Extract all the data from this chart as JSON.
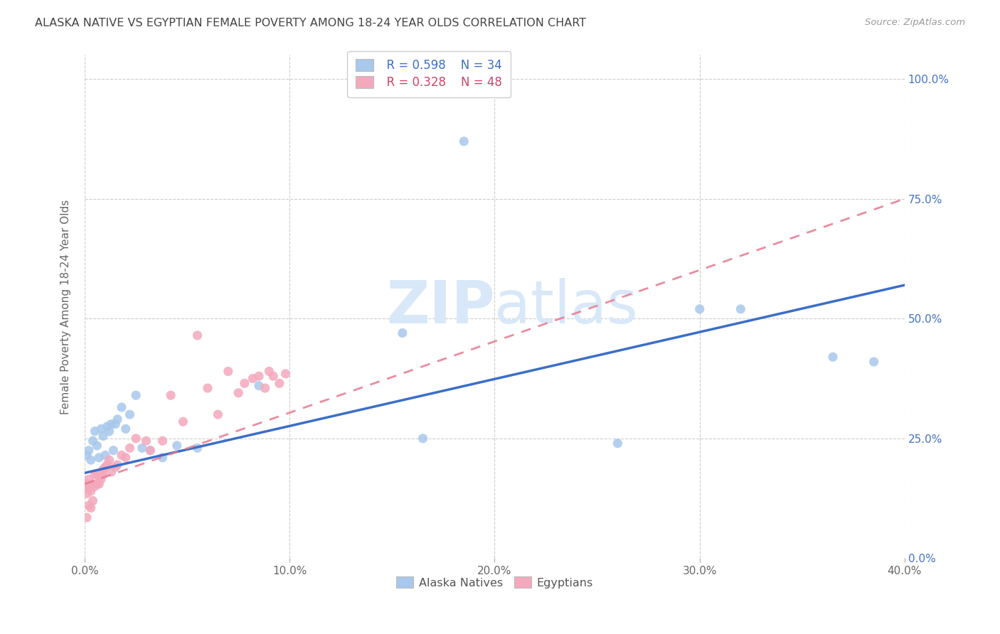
{
  "title": "ALASKA NATIVE VS EGYPTIAN FEMALE POVERTY AMONG 18-24 YEAR OLDS CORRELATION CHART",
  "source": "Source: ZipAtlas.com",
  "xlabel_ticks": [
    "0.0%",
    "10.0%",
    "20.0%",
    "30.0%",
    "40.0%"
  ],
  "xlabel_tick_vals": [
    0.0,
    0.1,
    0.2,
    0.3,
    0.4
  ],
  "ylabel": "Female Poverty Among 18-24 Year Olds",
  "right_ytick_vals": [
    0.0,
    0.25,
    0.5,
    0.75,
    1.0
  ],
  "right_ytick_labels": [
    "0.0%",
    "25.0%",
    "50.0%",
    "75.0%",
    "100.0%"
  ],
  "xlim": [
    0.0,
    0.4
  ],
  "ylim": [
    0.0,
    1.05
  ],
  "legend_r_alaska": "R = 0.598",
  "legend_n_alaska": "N = 34",
  "legend_r_egypt": "R = 0.328",
  "legend_n_egypt": "N = 48",
  "alaska_color": "#A8C8EC",
  "egypt_color": "#F4A8BC",
  "alaska_line_color": "#3B6EC8",
  "egypt_line_color": "#E87890",
  "alaska_x": [
    0.001,
    0.002,
    0.003,
    0.004,
    0.005,
    0.006,
    0.007,
    0.008,
    0.009,
    0.01,
    0.011,
    0.012,
    0.013,
    0.014,
    0.015,
    0.016,
    0.018,
    0.02,
    0.022,
    0.025,
    0.028,
    0.032,
    0.038,
    0.045,
    0.055,
    0.085,
    0.155,
    0.165,
    0.185,
    0.26,
    0.3,
    0.32,
    0.365,
    0.385
  ],
  "alaska_y": [
    0.215,
    0.225,
    0.205,
    0.245,
    0.265,
    0.235,
    0.21,
    0.27,
    0.255,
    0.215,
    0.275,
    0.265,
    0.28,
    0.225,
    0.28,
    0.29,
    0.315,
    0.27,
    0.3,
    0.34,
    0.23,
    0.225,
    0.21,
    0.235,
    0.23,
    0.36,
    0.47,
    0.25,
    0.87,
    0.24,
    0.52,
    0.52,
    0.42,
    0.41
  ],
  "egypt_x": [
    0.001,
    0.001,
    0.001,
    0.002,
    0.002,
    0.002,
    0.003,
    0.003,
    0.004,
    0.004,
    0.005,
    0.005,
    0.006,
    0.006,
    0.007,
    0.007,
    0.008,
    0.008,
    0.009,
    0.009,
    0.01,
    0.011,
    0.012,
    0.013,
    0.015,
    0.016,
    0.018,
    0.02,
    0.022,
    0.025,
    0.03,
    0.032,
    0.038,
    0.042,
    0.048,
    0.055,
    0.06,
    0.065,
    0.07,
    0.075,
    0.078,
    0.082,
    0.085,
    0.088,
    0.09,
    0.092,
    0.095,
    0.098
  ],
  "egypt_y": [
    0.085,
    0.135,
    0.155,
    0.11,
    0.145,
    0.165,
    0.105,
    0.14,
    0.12,
    0.155,
    0.175,
    0.15,
    0.155,
    0.175,
    0.17,
    0.155,
    0.165,
    0.175,
    0.175,
    0.185,
    0.19,
    0.195,
    0.205,
    0.18,
    0.19,
    0.195,
    0.215,
    0.21,
    0.23,
    0.25,
    0.245,
    0.225,
    0.245,
    0.34,
    0.285,
    0.465,
    0.355,
    0.3,
    0.39,
    0.345,
    0.365,
    0.375,
    0.38,
    0.355,
    0.39,
    0.38,
    0.365,
    0.385
  ],
  "background_color": "#FFFFFF",
  "grid_color": "#CCCCCC",
  "title_color": "#444444",
  "right_axis_color": "#4472C4",
  "watermark_color": "#D8E8F8"
}
